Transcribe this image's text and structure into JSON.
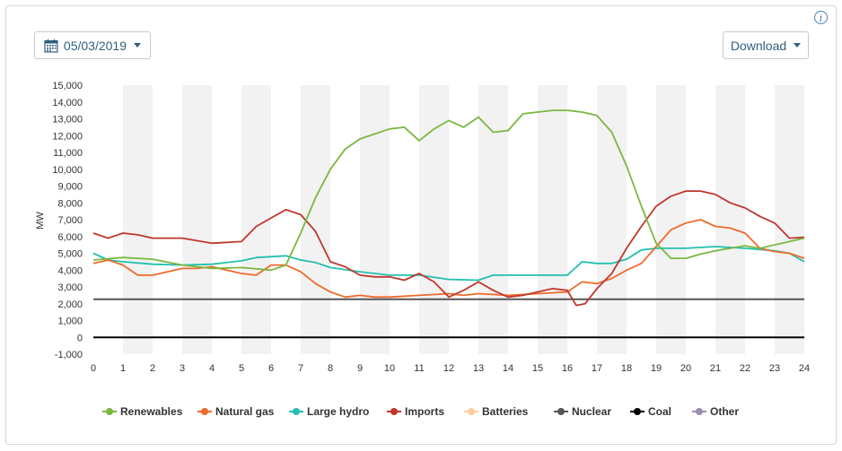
{
  "toolbar": {
    "date": "05/03/2019",
    "download_label": "Download",
    "info_label": "i"
  },
  "colors": {
    "Renewables": "#7cb740",
    "Natural gas": "#ef6a2b",
    "Large hydro": "#23bfae",
    "Imports": "#c0362c",
    "Batteries": "#ffcf99",
    "Nuclear": "#555555",
    "Coal": "#000000",
    "Other": "#9b8fb0"
  },
  "chart_data": {
    "type": "line",
    "title": "",
    "xlabel": "",
    "ylabel": "MW",
    "xlim": [
      0,
      24
    ],
    "ylim": [
      -1000,
      15000
    ],
    "x_ticks": [
      0,
      1,
      2,
      3,
      4,
      5,
      6,
      7,
      8,
      9,
      10,
      11,
      12,
      13,
      14,
      15,
      16,
      17,
      18,
      19,
      20,
      21,
      22,
      23,
      24
    ],
    "y_ticks": [
      -1000,
      0,
      1000,
      2000,
      3000,
      4000,
      5000,
      6000,
      7000,
      8000,
      9000,
      10000,
      11000,
      12000,
      13000,
      14000,
      15000
    ],
    "y_tick_labels": [
      "-1,000",
      "0",
      "1,000",
      "2,000",
      "3,000",
      "4,000",
      "5,000",
      "6,000",
      "7,000",
      "8,000",
      "9,000",
      "10,000",
      "11,000",
      "12,000",
      "13,000",
      "14,000",
      "15,000"
    ],
    "x_tick_labels": [
      "0",
      "1",
      "2",
      "3",
      "4",
      "5",
      "6",
      "7",
      "8",
      "9",
      "10",
      "11",
      "12",
      "13",
      "14",
      "15",
      "16",
      "17",
      "18",
      "19",
      "20",
      "21",
      "22",
      "23",
      "24"
    ],
    "grid": "alternating vertical bands",
    "legend_position": "bottom",
    "series": [
      {
        "name": "Renewables",
        "x": [
          0,
          1,
          2,
          3,
          4,
          5,
          6,
          6.5,
          7,
          7.5,
          8,
          8.5,
          9,
          9.5,
          10,
          10.5,
          11,
          11.5,
          12,
          12.5,
          13,
          13.5,
          14,
          14.5,
          15,
          15.5,
          16,
          16.5,
          17,
          17.5,
          18,
          18.5,
          19,
          19.5,
          20,
          20.5,
          21,
          21.5,
          22,
          22.5,
          23,
          23.5,
          24
        ],
        "values": [
          4600,
          4750,
          4650,
          4300,
          4100,
          4150,
          4000,
          4300,
          6200,
          8300,
          10000,
          11200,
          11800,
          12100,
          12400,
          12500,
          11700,
          12400,
          12900,
          12500,
          13100,
          12200,
          12300,
          13300,
          13400,
          13500,
          13500,
          13400,
          13200,
          12200,
          10200,
          7800,
          5600,
          4700,
          4700,
          4950,
          5150,
          5300,
          5450,
          5300,
          5500,
          5700,
          5900
        ]
      },
      {
        "name": "Natural gas",
        "x": [
          0,
          0.5,
          1,
          1.5,
          2,
          3,
          3.5,
          4,
          5,
          5.5,
          6,
          6.5,
          7,
          7.5,
          8,
          8.5,
          9,
          9.5,
          10,
          11,
          12,
          12.5,
          13,
          14,
          15,
          16,
          16.5,
          17,
          17.5,
          18,
          18.5,
          19,
          19.5,
          20,
          20.5,
          21,
          21.5,
          22,
          22.5,
          23,
          23.5,
          24
        ],
        "values": [
          4400,
          4600,
          4300,
          3700,
          3700,
          4100,
          4100,
          4200,
          3800,
          3700,
          4300,
          4300,
          3900,
          3200,
          2700,
          2400,
          2500,
          2400,
          2400,
          2500,
          2600,
          2500,
          2600,
          2500,
          2600,
          2700,
          3300,
          3200,
          3500,
          4000,
          4400,
          5400,
          6400,
          6800,
          7000,
          6600,
          6500,
          6200,
          5300,
          5100,
          5000,
          4700
        ]
      },
      {
        "name": "Large hydro",
        "x": [
          0,
          0.5,
          1,
          2,
          3,
          4,
          5,
          5.5,
          6,
          6.5,
          7,
          7.5,
          8,
          9,
          10,
          11,
          12,
          13,
          13.5,
          14,
          15,
          16,
          16.5,
          17,
          17.5,
          18,
          18.5,
          19,
          20,
          21,
          22,
          23,
          23.5,
          24
        ],
        "values": [
          5000,
          4600,
          4500,
          4350,
          4300,
          4350,
          4550,
          4750,
          4800,
          4850,
          4600,
          4450,
          4150,
          3900,
          3700,
          3700,
          3450,
          3400,
          3700,
          3700,
          3700,
          3700,
          4500,
          4400,
          4400,
          4650,
          5200,
          5300,
          5300,
          5400,
          5300,
          5150,
          5000,
          4500
        ]
      },
      {
        "name": "Imports",
        "x": [
          0,
          0.5,
          1,
          1.5,
          2,
          3,
          4,
          5,
          5.5,
          6,
          6.5,
          7,
          7.5,
          8,
          8.5,
          9,
          9.5,
          10,
          10.5,
          11,
          11.5,
          12,
          12.5,
          13,
          13.5,
          14,
          14.5,
          15,
          15.5,
          16,
          16.3,
          16.6,
          17,
          17.5,
          18,
          18.5,
          19,
          19.5,
          20,
          20.5,
          21,
          21.5,
          22,
          22.5,
          23,
          23.5,
          24
        ],
        "values": [
          6200,
          5900,
          6200,
          6100,
          5900,
          5900,
          5600,
          5700,
          6600,
          7100,
          7600,
          7300,
          6300,
          4500,
          4200,
          3700,
          3600,
          3600,
          3400,
          3800,
          3300,
          2400,
          2800,
          3300,
          2800,
          2400,
          2500,
          2700,
          2900,
          2800,
          1900,
          2000,
          2900,
          3800,
          5300,
          6600,
          7800,
          8400,
          8700,
          8700,
          8500,
          8000,
          7700,
          7200,
          6800,
          5900,
          5950
        ]
      },
      {
        "name": "Batteries",
        "x": [
          0,
          6,
          12,
          18,
          24
        ],
        "values": [
          0,
          30,
          20,
          10,
          0
        ]
      },
      {
        "name": "Nuclear",
        "x": [
          0,
          24
        ],
        "values": [
          2270,
          2270
        ]
      },
      {
        "name": "Coal",
        "x": [
          0,
          24
        ],
        "values": [
          0,
          0
        ]
      },
      {
        "name": "Other",
        "x": [
          0,
          24
        ],
        "values": [
          10,
          10
        ]
      }
    ]
  }
}
